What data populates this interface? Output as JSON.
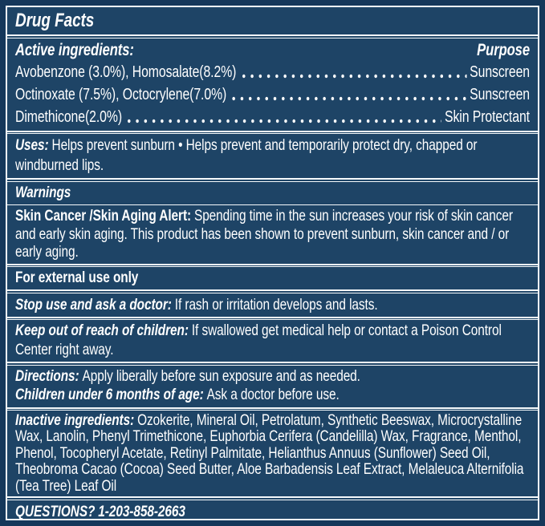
{
  "label": {
    "title": "Drug Facts",
    "active": {
      "heading": "Active ingredients:",
      "purpose_heading": "Purpose",
      "rows": [
        {
          "name": "Avobenzone (3.0%), Homosalate(8.2%)",
          "purpose": "Sunscreen"
        },
        {
          "name": "Octinoxate (7.5%), Octocrylene(7.0%)",
          "purpose": "Sunscreen"
        },
        {
          "name": "Dimethicone(2.0%)",
          "purpose": "Skin Protectant"
        }
      ]
    },
    "uses": {
      "label": "Uses:",
      "text": "Helps prevent sunburn • Helps prevent and temporarily protect dry, chapped or windburned lips."
    },
    "warnings_heading": "Warnings",
    "skin_alert": {
      "label": "Skin Cancer /Skin Aging Alert:",
      "text": "Spending time in the sun increases your risk of skin cancer and early skin aging. This product has been shown to prevent sunburn, skin cancer and / or early aging."
    },
    "external_use": "For external use only",
    "stop_use": {
      "label": "Stop use and ask a doctor:",
      "text": "If rash or irritation develops and lasts."
    },
    "keep_out": {
      "label": "Keep out of reach of children:",
      "text": "If swallowed get medical help or contact a Poison Control Center right away."
    },
    "directions": {
      "label": "Directions:",
      "text": "Apply liberally before sun exposure and as needed."
    },
    "children": {
      "label": "Children under 6 months of age:",
      "text": "Ask a doctor before use."
    },
    "inactive": {
      "label": "Inactive ingredients:",
      "text": "Ozokerite, Mineral Oil, Petrolatum, Synthetic Beeswax, Microcrystalline Wax, Lanolin, Phenyl Trimethicone, Euphorbia Cerifera (Candelilla) Wax, Fragrance, Menthol, Phenol, Tocopheryl Acetate, Retinyl Palmitate, Helianthus Annuus (Sunflower) Seed Oil, Theobroma Cacao (Cocoa) Seed Butter, Aloe Barbadensis Leaf Extract, Melaleuca Alternifolia (Tea Tree) Leaf Oil"
    },
    "questions": {
      "label": "QUESTIONS?",
      "phone": "1-203-858-2663"
    }
  },
  "colors": {
    "panel_background": "#1e4466",
    "outer_border": "#15375a",
    "rule": "#f6fafc",
    "text": "#ffffff"
  }
}
